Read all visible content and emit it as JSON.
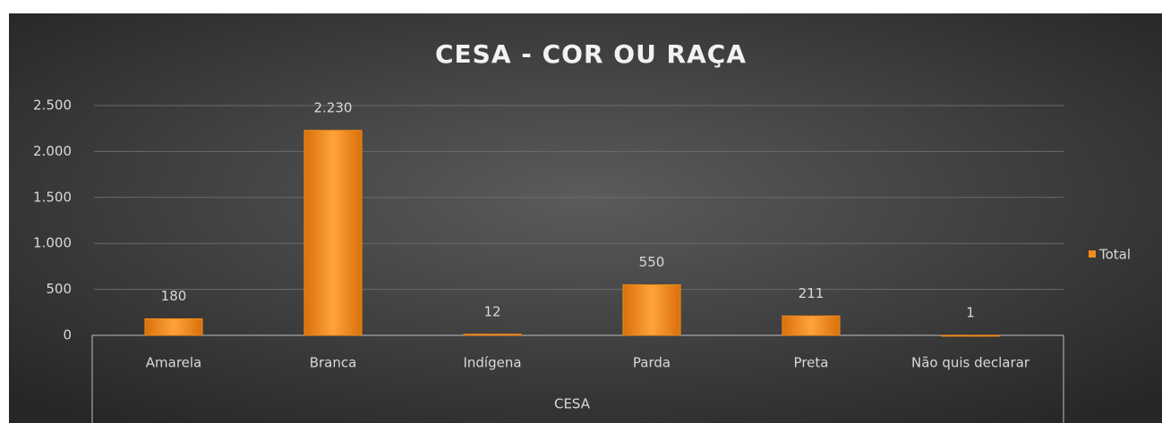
{
  "chart_data": {
    "type": "bar",
    "title": "CESA - COR OU RAÇA",
    "categories": [
      "Amarela",
      "Branca",
      "Indígena",
      "Parda",
      "Preta",
      "Não quis declarar"
    ],
    "category_group": "CESA",
    "series": [
      {
        "name": "Total",
        "color": "#f28c1c",
        "values": [
          180,
          2230,
          12,
          550,
          211,
          1
        ],
        "value_labels": [
          "180",
          "2.230",
          "12",
          "550",
          "211",
          "1"
        ]
      }
    ],
    "ylim": [
      0,
      2500
    ],
    "yticks": [
      0,
      500,
      {
        "value": 1000,
        "label": "1.000"
      },
      {
        "value": 1500,
        "label": "1.500"
      },
      {
        "value": 2000,
        "label": "2.000"
      },
      {
        "value": 2500,
        "label": "2.500"
      }
    ],
    "grid": true,
    "legend": "right"
  }
}
